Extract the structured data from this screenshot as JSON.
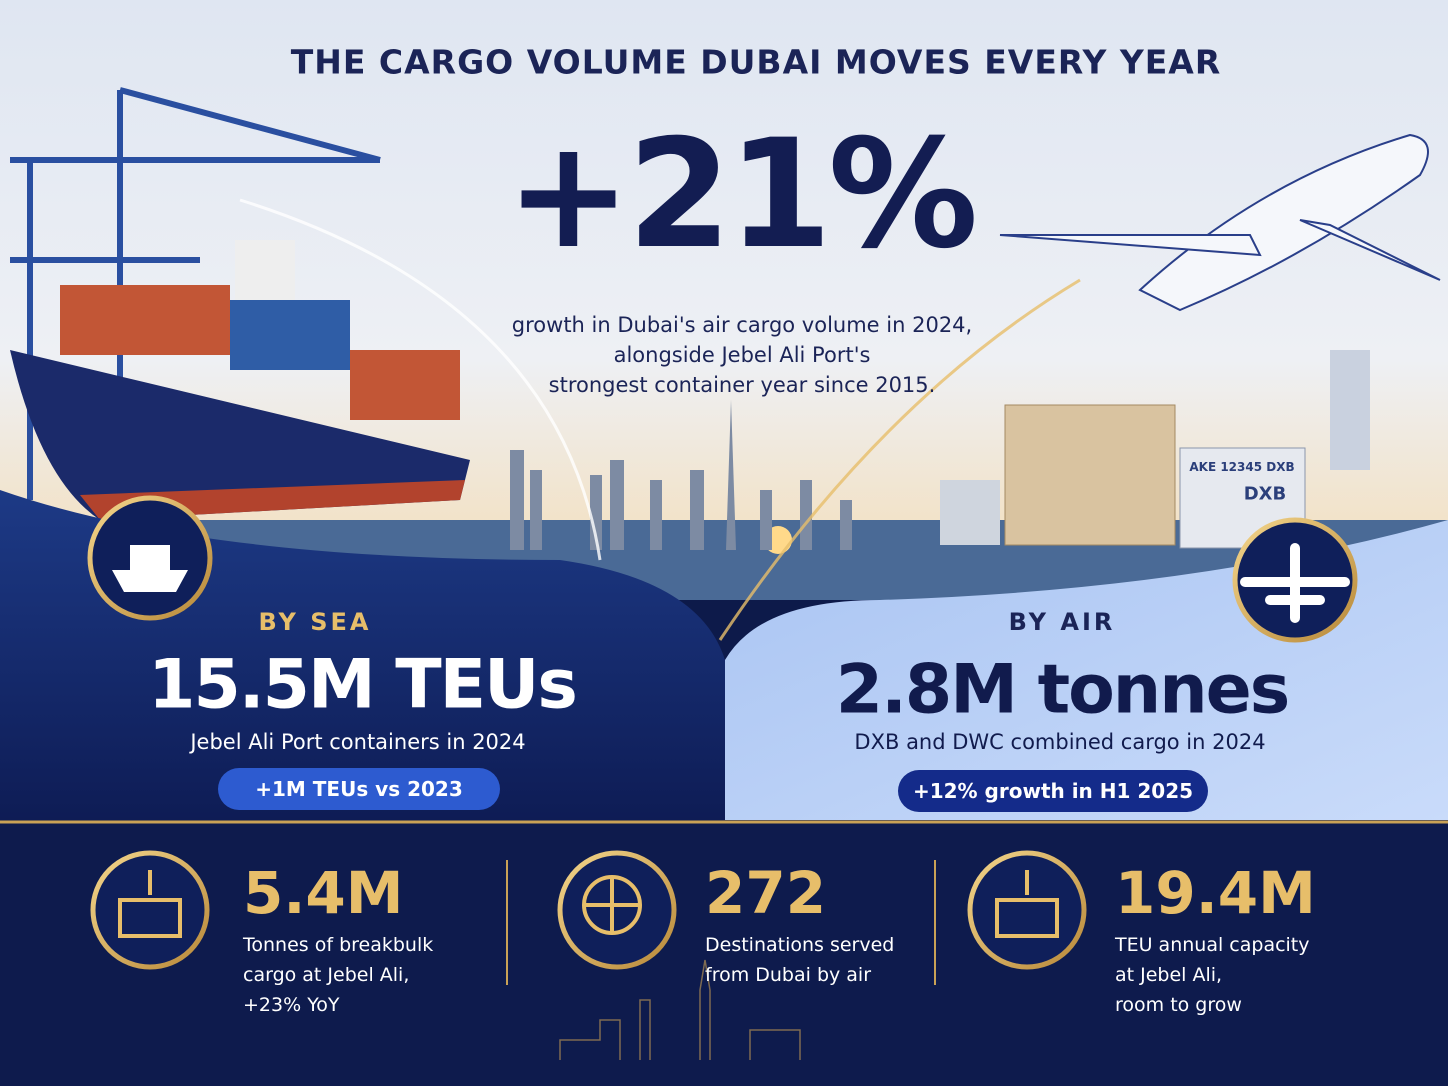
{
  "header": {
    "title": "THE CARGO VOLUME DUBAI MOVES EVERY YEAR",
    "headline": "+21%",
    "description": [
      "growth in Dubai's air cargo volume in 2024,",
      "alongside Jebel Ali Port's",
      "strongest container year since 2015."
    ]
  },
  "sea": {
    "label": "BY SEA",
    "value": "15.5M TEUs",
    "caption": "Jebel Ali Port containers in 2024",
    "badge": "+1M TEUs vs 2023"
  },
  "air": {
    "label": "BY AIR",
    "value": "2.8M tonnes",
    "caption": "DXB and DWC combined cargo in 2024",
    "badge": "+12% growth in H1 2025"
  },
  "photo_labels": [
    "AKE 12345 DXB",
    "DXB"
  ],
  "stats": [
    {
      "value": "5.4M",
      "description": [
        "Tonnes of breakbulk",
        "cargo at Jebel Ali,",
        "+23% YoY"
      ]
    },
    {
      "value": "272",
      "description": [
        "Destinations served",
        "from Dubai by air"
      ]
    },
    {
      "value": "19.4M",
      "description": [
        "TEU annual capacity",
        "at Jebel Ali,",
        "room to grow"
      ]
    }
  ]
}
